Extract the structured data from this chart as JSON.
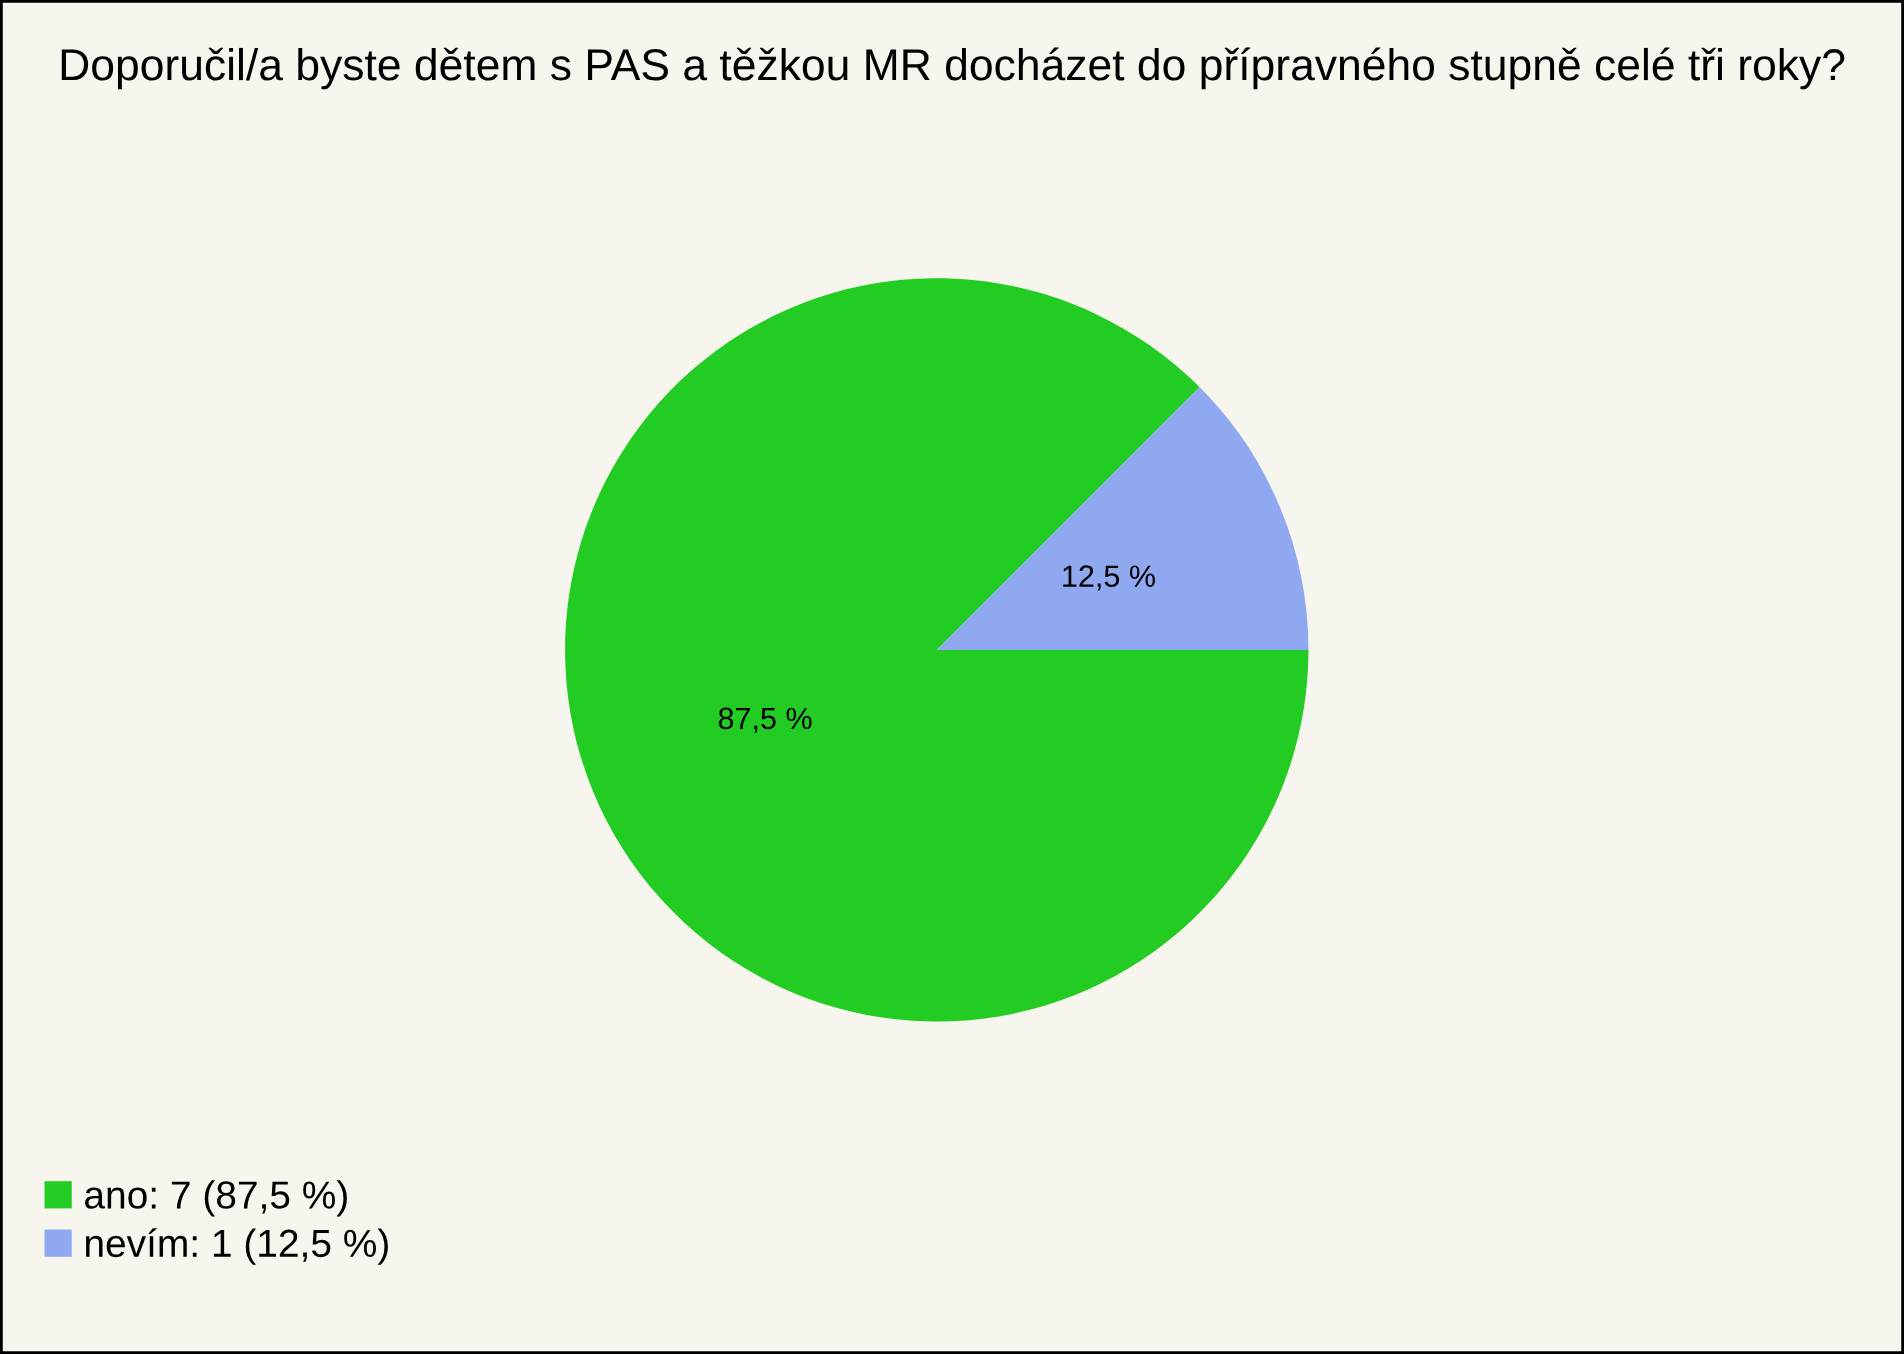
{
  "chart_data": {
    "type": "pie",
    "title": "Doporučil/a byste dětem s PAS a těžkou MR docházet do přípravného stupně celé tři roky?",
    "categories": [
      "ano: 7 (87,5 %)",
      "nevím: 1 (12,5 %)"
    ],
    "values": [
      87.5,
      12.5
    ],
    "value_labels": [
      "87,5 %",
      "12,5 %"
    ],
    "colors": [
      "#22cc22",
      "#8fa8f0"
    ],
    "legend": "bottom left"
  }
}
